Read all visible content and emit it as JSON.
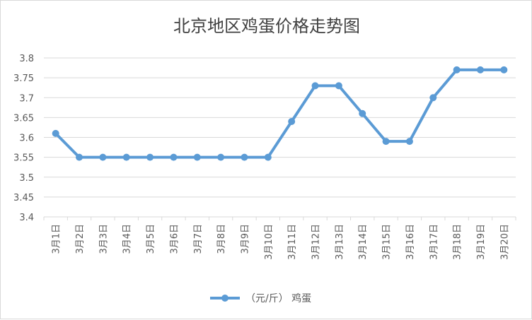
{
  "chart_data": {
    "type": "line",
    "title": "北京地区鸡蛋价格走势图",
    "xlabel": "",
    "ylabel": "",
    "categories": [
      "3月1日",
      "3月2日",
      "3月3日",
      "3月4日",
      "3月5日",
      "3月6日",
      "3月7日",
      "3月8日",
      "3月9日",
      "3月10日",
      "3月11日",
      "3月12日",
      "3月13日",
      "3月14日",
      "3月15日",
      "3月16日",
      "3月17日",
      "3月18日",
      "3月19日",
      "3月20日"
    ],
    "series": [
      {
        "name": "（元/斤） 鸡蛋",
        "color": "#5b9bd5",
        "values": [
          3.61,
          3.55,
          3.55,
          3.55,
          3.55,
          3.55,
          3.55,
          3.55,
          3.55,
          3.55,
          3.64,
          3.73,
          3.73,
          3.66,
          3.59,
          3.59,
          3.7,
          3.77,
          3.77,
          3.77
        ]
      }
    ],
    "yticks": [
      "3.4",
      "3.45",
      "3.5",
      "3.55",
      "3.6",
      "3.65",
      "3.7",
      "3.75",
      "3.8"
    ],
    "ylim": [
      3.4,
      3.8
    ],
    "grid": true,
    "legend_position": "bottom"
  }
}
